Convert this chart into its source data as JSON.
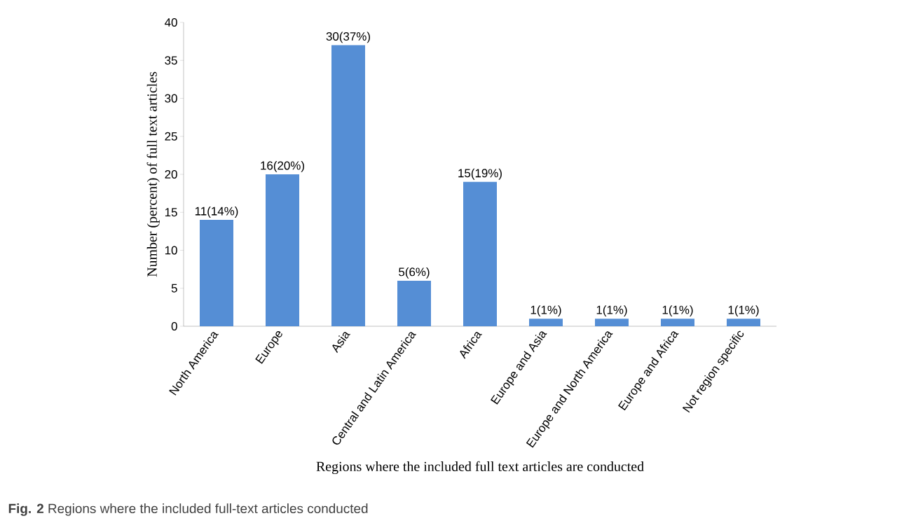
{
  "chart_data": {
    "type": "bar",
    "categories": [
      "North America",
      "Europe",
      "Asia",
      "Central and Latin America",
      "Africa",
      "Europe and Asia",
      "Europe and North America",
      "Europe and Africa",
      "Not region specific"
    ],
    "values": [
      14,
      20,
      37,
      6,
      19,
      1,
      1,
      1,
      1
    ],
    "value_labels": [
      "11(14%)",
      "16(20%)",
      "30(37%)",
      "5(6%)",
      "15(19%)",
      "1(1%)",
      "1(1%)",
      "1(1%)",
      "1(1%)"
    ],
    "color": "#558ed5",
    "ylim": [
      0,
      40
    ],
    "yticks": [
      0,
      5,
      10,
      15,
      20,
      25,
      30,
      35,
      40
    ],
    "xlabel": "Regions where the included full text articles are conducted",
    "ylabel": "Number (percent) of full text articles",
    "annotations": [
      "**Fig. 2** Regions where the included full-text articles conducted"
    ]
  }
}
